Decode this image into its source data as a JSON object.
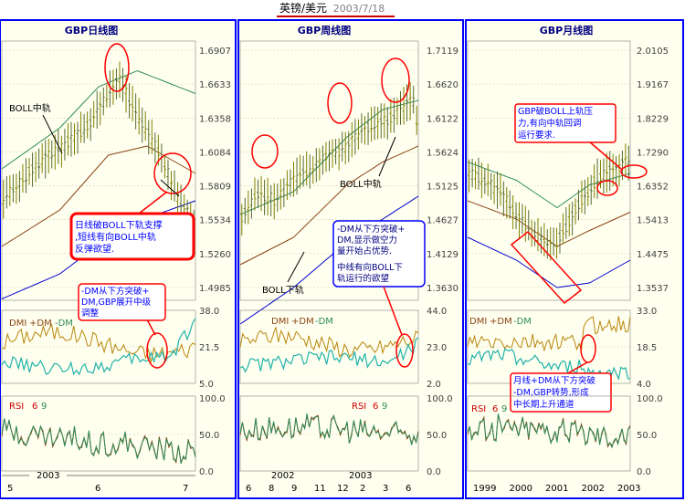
{
  "header": {
    "title": "英镑/美元",
    "date": "2003/7/18"
  },
  "colors": {
    "panel_bg": "#fffff0",
    "frame_blue": "#0000ff",
    "dark_blue": "#000080",
    "grid": "#c8c8a8",
    "candle": "#808000",
    "candle_alt": "#556b2f",
    "mid_band": "#8b4513",
    "upper_band": "#2e8b57",
    "lower_band": "#0000cd",
    "dmi_plus": "#b8860b",
    "dmi_minus": "#20b2aa",
    "rsi6": "#8b4513",
    "rsi9": "#2e8b57",
    "circle_red": "#ff0000",
    "note_red": "#ff0000",
    "note_blue": "#0000ff",
    "label_red": "#cc0000",
    "label_green": "#2e8b57"
  },
  "panels": [
    {
      "title": "GBP日线图",
      "price_axis": [
        "1.6907",
        "1.6633",
        "1.6358",
        "1.6084",
        "1.5809",
        "1.5534",
        "1.5260",
        "1.4985"
      ],
      "dmi_axis": [
        "38.0",
        "21.5",
        "5.0"
      ],
      "rsi_axis": [
        "100.0",
        "50.0",
        "0.0"
      ],
      "dmi_label": "DMI",
      "plus_dm": "+DM",
      "minus_dm": "-DM",
      "rsi_label": "RSI",
      "rsi_p1": "6",
      "rsi_p2": "9",
      "bottom_labels": [
        "5",
        "6",
        "7"
      ],
      "year_label": "2003",
      "boll_label": "BOLL中轨",
      "note1": "日线破BOLL下轨支撑,短线有向BOLL中轨反弹欲望.",
      "note1_lines": [
        "日线破BOLL下轨支撑",
        ",短线有向BOLL中轨",
        "反弹欲望."
      ],
      "note2": "-DM从下方突破+DM,GBP展开中级调整",
      "note2_lines": [
        "-DM从下方突破+",
        "DM,GBP展开中级",
        "调整"
      ]
    },
    {
      "title": "GBP周线图",
      "price_axis": [
        "1.7119",
        "1.6620",
        "1.6122",
        "1.5624",
        "1.5125",
        "1.4627",
        "1.4129",
        "1.3630"
      ],
      "dmi_axis": [
        "44.0",
        "23.0",
        "2.0"
      ],
      "rsi_axis": [
        "100.0",
        "50.0",
        "0.0"
      ],
      "dmi_label": "DMI",
      "plus_dm": "+DM",
      "minus_dm": "-DM",
      "rsi_label": "RSI",
      "rsi_p1": "6",
      "rsi_p2": "9",
      "bottom_labels": [
        "6",
        "8",
        "9",
        "11",
        "12",
        "2",
        "3",
        "6"
      ],
      "year_labels": [
        "2002",
        "2003"
      ],
      "boll_mid_label": "BOLL中轨",
      "boll_low_label": "BOLL下轨",
      "note": "-DM从下方突破+DM,显示做空力量开始占优势.中线有向BOLL下轨运行的欲望",
      "note_lines": [
        "-DM从下方突破+",
        "DM,显示做空力",
        "量开始占优势.",
        "中线有向BOLL下",
        "轨运行的欲望"
      ]
    },
    {
      "title": "GBP月线图",
      "price_axis": [
        "2.0105",
        "1.9167",
        "1.8229",
        "1.7290",
        "1.6352",
        "1.5413",
        "1.4475",
        "1.3537"
      ],
      "dmi_axis": [
        "33.0",
        "18.5",
        "4.0"
      ],
      "rsi_axis": [
        "100.0",
        "50.0",
        "0.0"
      ],
      "dmi_label": "DMI",
      "plus_dm": "+DM",
      "minus_dm": "-DM",
      "rsi_label": "RSI",
      "rsi_p1": "6",
      "rsi_p2": "9",
      "bottom_labels": [
        "1999",
        "2000",
        "2001",
        "2002",
        "2003"
      ],
      "note1": "GBP破BOLL上轨压力,有向中轨回调运行要求.",
      "note1_lines": [
        "GBP破BOLL上轨压",
        "力,有向中轨回调",
        "运行要求."
      ],
      "note2": "月线+DM从下方突破-DM,GBP转势,形成中长期上升通道",
      "note2_lines": [
        "月线+DM从下方突破",
        "-DM,GBP转势,形成",
        "中长期上升通道"
      ]
    }
  ]
}
